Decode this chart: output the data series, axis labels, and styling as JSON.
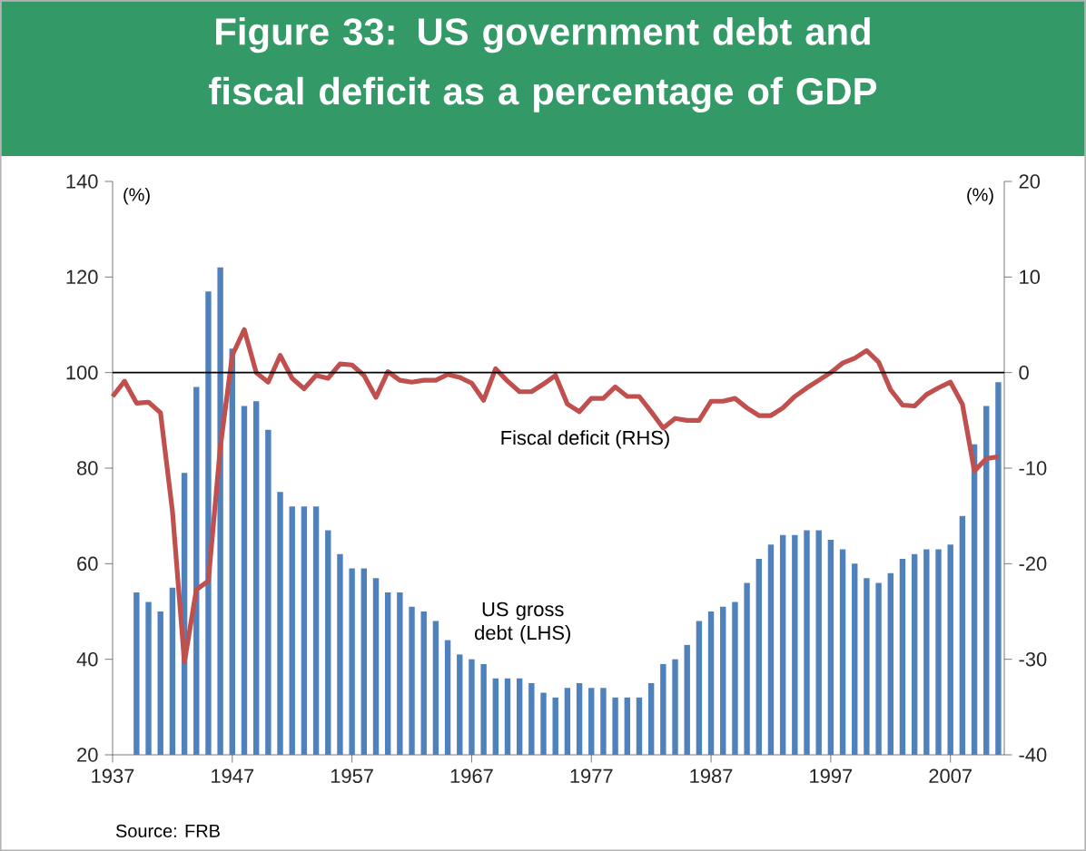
{
  "chart_data": {
    "type": "bar",
    "title": "Figure 33: US government debt and fiscal deficit as a percentage of GDP",
    "ylabel": "(%)",
    "y2label": "(%)",
    "annotations": [
      "Source: FRB"
    ],
    "xlim": [
      1937,
      2011.5
    ],
    "xticks": [
      1937,
      1947,
      1957,
      1967,
      1977,
      1987,
      1997,
      2007
    ],
    "ylim": [
      20,
      140
    ],
    "yticks": [
      20,
      40,
      60,
      80,
      100,
      120,
      140
    ],
    "y2lim": [
      -40,
      20
    ],
    "y2ticks": [
      -40,
      -30,
      -20,
      -10,
      0,
      10,
      20
    ],
    "ref_lines": [
      {
        "axis": "y2",
        "value": 0,
        "color": "#000000"
      }
    ],
    "series": [
      {
        "name": "US gross debt (LHS)",
        "color": "#4f81bd",
        "x": [
          1939,
          1940,
          1941,
          1942,
          1943,
          1944,
          1945,
          1946,
          1947,
          1948,
          1949,
          1950,
          1951,
          1952,
          1953,
          1954,
          1955,
          1956,
          1957,
          1958,
          1959,
          1960,
          1961,
          1962,
          1963,
          1964,
          1965,
          1966,
          1967,
          1968,
          1969,
          1970,
          1971,
          1972,
          1973,
          1974,
          1975,
          1976,
          1977,
          1978,
          1979,
          1980,
          1981,
          1982,
          1983,
          1984,
          1985,
          1986,
          1987,
          1988,
          1989,
          1990,
          1991,
          1992,
          1993,
          1994,
          1995,
          1996,
          1997,
          1998,
          1999,
          2000,
          2001,
          2002,
          2003,
          2004,
          2005,
          2006,
          2007,
          2008,
          2009,
          2010,
          2011
        ],
        "values": [
          54,
          52,
          50,
          55,
          79,
          97,
          117,
          122,
          105,
          93,
          94,
          88,
          75,
          72,
          72,
          72,
          67,
          62,
          59,
          59,
          57,
          54,
          54,
          51,
          50,
          48,
          44,
          41,
          40,
          39,
          36,
          36,
          36,
          35,
          33,
          32,
          34,
          35,
          34,
          34,
          32,
          32,
          32,
          35,
          39,
          40,
          43,
          48,
          50,
          51,
          52,
          56,
          61,
          64,
          66,
          66,
          67,
          67,
          65,
          63,
          60,
          57,
          56,
          58,
          61,
          62,
          63,
          63,
          64,
          70,
          85,
          93,
          98
        ]
      },
      {
        "name": "Fiscal deficit (RHS)",
        "type": "line",
        "axis": "y2",
        "color": "#c0504d",
        "x": [
          1937,
          1938,
          1939,
          1940,
          1941,
          1942,
          1943,
          1944,
          1945,
          1946,
          1947,
          1948,
          1949,
          1950,
          1951,
          1952,
          1953,
          1954,
          1955,
          1956,
          1957,
          1958,
          1959,
          1960,
          1961,
          1962,
          1963,
          1964,
          1965,
          1966,
          1967,
          1968,
          1969,
          1970,
          1971,
          1972,
          1973,
          1974,
          1975,
          1976,
          1977,
          1978,
          1979,
          1980,
          1981,
          1982,
          1983,
          1984,
          1985,
          1986,
          1987,
          1988,
          1989,
          1990,
          1991,
          1992,
          1993,
          1994,
          1995,
          1996,
          1997,
          1998,
          1999,
          2000,
          2001,
          2002,
          2003,
          2004,
          2005,
          2006,
          2007,
          2008,
          2009,
          2010,
          2011
        ],
        "values": [
          -2.5,
          -0.9,
          -3.2,
          -3.1,
          -4.2,
          -14.5,
          -30.3,
          -22.7,
          -21.8,
          -7.8,
          1.8,
          4.5,
          0,
          -1,
          1.8,
          -0.6,
          -1.7,
          -0.3,
          -0.6,
          0.9,
          0.8,
          -0.3,
          -2.6,
          0.1,
          -0.8,
          -1,
          -0.8,
          -0.8,
          -0.2,
          -0.5,
          -1.1,
          -2.9,
          0.4,
          -0.9,
          -2,
          -2,
          -1.2,
          -0.3,
          -3.3,
          -4.1,
          -2.7,
          -2.7,
          -1.5,
          -2.5,
          -2.5,
          -4.1,
          -5.8,
          -4.8,
          -5,
          -5,
          -3,
          -3,
          -2.7,
          -3.7,
          -4.5,
          -4.5,
          -3.7,
          -2.5,
          -1.6,
          -0.8,
          0,
          1,
          1.5,
          2.3,
          1.1,
          -1.8,
          -3.4,
          -3.5,
          -2.3,
          -1.6,
          -1,
          -3.3,
          -10.3,
          -9,
          -8.8
        ]
      }
    ]
  }
}
